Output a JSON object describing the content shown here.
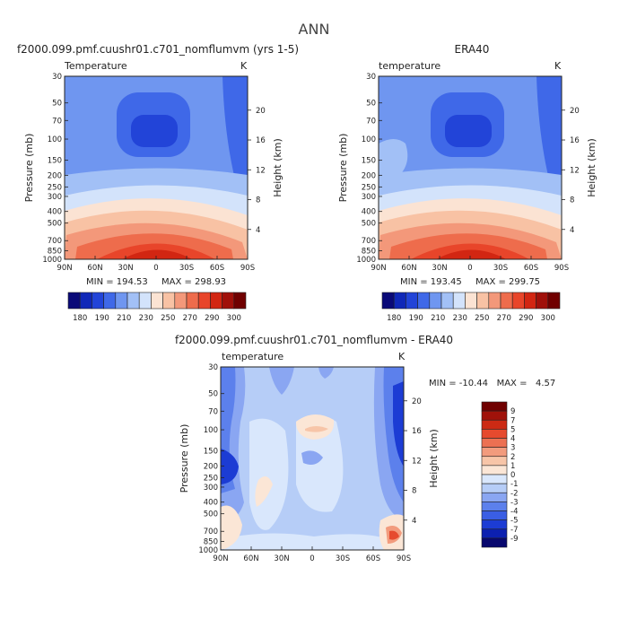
{
  "figure_title": "ANN",
  "colors": {
    "abs_palette": [
      "#0a0a78",
      "#1028b8",
      "#2244d8",
      "#3f68e8",
      "#6f96f0",
      "#a2c0f6",
      "#d3e3fb",
      "#fbe3d3",
      "#f8c2a4",
      "#f3987a",
      "#ee6c4c",
      "#e8452a",
      "#d22612",
      "#a0100a",
      "#700000"
    ],
    "diff_palette": [
      "#08086e",
      "#0c20b0",
      "#1c3cd4",
      "#3a5ee4",
      "#5c80ec",
      "#8aa6f2",
      "#b6cdf7",
      "#d9e7fc",
      "#fbe6d6",
      "#f7c5a8",
      "#f29b7d",
      "#ec7052",
      "#e64a2e",
      "#cc2a14",
      "#a0120a",
      "#700000"
    ]
  },
  "chart_data": [
    {
      "type": "heatmap",
      "title": "f2000.099.pmf.cuushr01.c701_nomflumvm (yrs 1-5)",
      "variable": "Temperature",
      "units": "K",
      "xlabel": "",
      "ylabel": "Pressure (mb)",
      "y2label": "Height (km)",
      "x_ticks": [
        "90N",
        "60N",
        "30N",
        "0",
        "30S",
        "60S",
        "90S"
      ],
      "y_ticks": [
        "30",
        "50",
        "70",
        "100",
        "150",
        "200",
        "250",
        "300",
        "400",
        "500",
        "700",
        "850",
        "1000"
      ],
      "y2_ticks": [
        "20",
        "16",
        "12",
        "8",
        "4"
      ],
      "min_label": "MIN = 194.53",
      "max_label": "MAX = 298.93",
      "colorbar_ticks": [
        "180",
        "190",
        "210",
        "230",
        "250",
        "270",
        "290",
        "300"
      ],
      "contour_levels": [
        200,
        210,
        220,
        230,
        240,
        250,
        260,
        270,
        280,
        290
      ]
    },
    {
      "type": "heatmap",
      "title": "ERA40",
      "variable": "temperature",
      "units": "K",
      "xlabel": "",
      "ylabel": "Pressure (mb)",
      "y2label": "Height (km)",
      "x_ticks": [
        "90N",
        "60N",
        "30N",
        "0",
        "30S",
        "60S",
        "90S"
      ],
      "y_ticks": [
        "30",
        "50",
        "70",
        "100",
        "150",
        "200",
        "250",
        "300",
        "400",
        "500",
        "700",
        "850",
        "1000"
      ],
      "y2_ticks": [
        "20",
        "16",
        "12",
        "8",
        "4"
      ],
      "min_label": "MIN = 193.45",
      "max_label": "MAX = 299.75",
      "colorbar_ticks": [
        "180",
        "190",
        "210",
        "230",
        "250",
        "270",
        "290",
        "300"
      ],
      "contour_levels": [
        200,
        210,
        220,
        230,
        240,
        250,
        260,
        270,
        280,
        290
      ]
    },
    {
      "type": "heatmap",
      "title": "f2000.099.pmf.cuushr01.c701_nomflumvm - ERA40",
      "variable": "temperature",
      "units": "K",
      "xlabel": "",
      "ylabel": "Pressure (mb)",
      "y2label": "Height (km)",
      "x_ticks": [
        "90N",
        "60N",
        "30N",
        "0",
        "30S",
        "60S",
        "90S"
      ],
      "y_ticks": [
        "30",
        "50",
        "70",
        "100",
        "150",
        "200",
        "250",
        "300",
        "400",
        "500",
        "700",
        "850",
        "1000"
      ],
      "y2_ticks": [
        "20",
        "16",
        "12",
        "8",
        "4"
      ],
      "minmax_label": "MIN = -10.44   MAX =   4.57",
      "colorbar_ticks": [
        "9",
        "7",
        "5",
        "4",
        "3",
        "2",
        "1",
        "0",
        "-1",
        "-2",
        "-3",
        "-4",
        "-5",
        "-7",
        "-9"
      ]
    }
  ]
}
